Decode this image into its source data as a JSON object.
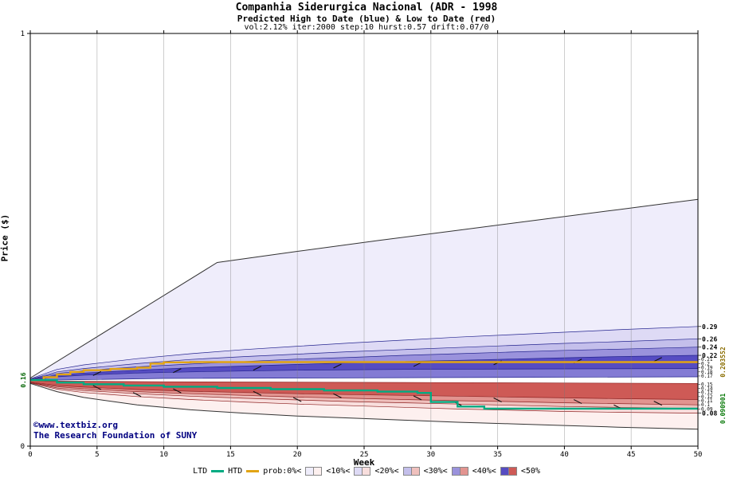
{
  "title": {
    "line1": "Companhia Siderurgica Nacional (ADR - 1998",
    "line2": "Predicted High to Date (blue) &  Low to Date (red)",
    "line3": "vol:2.12% iter:2000 step:10 hurst:0.57 drift:0.07/0"
  },
  "axes": {
    "x_label": "Week",
    "y_label": "Price ($)",
    "x_ticks": [
      0,
      5,
      10,
      15,
      20,
      25,
      30,
      35,
      40,
      45,
      50
    ],
    "y_ticks": [
      {
        "label": "1",
        "value": 1
      },
      {
        "label": "0",
        "value": 0
      }
    ],
    "start_price_label": {
      "label": "0.16",
      "value": 0.16,
      "color": "#006400"
    }
  },
  "watermark": {
    "line1": "©www.textbiz.org",
    "line2": "The Research Foundation of SUNY",
    "color": "#000080"
  },
  "right_labels": {
    "major": [
      {
        "label": "0.29",
        "value": 0.29
      },
      {
        "label": "0.26",
        "value": 0.26
      },
      {
        "label": "0.24",
        "value": 0.24
      },
      {
        "label": "0.22",
        "value": 0.22
      },
      {
        "label": "0.08",
        "value": 0.08
      }
    ],
    "cluster": [
      {
        "label": "0.21",
        "value": 0.21
      },
      {
        "label": "0.2",
        "value": 0.2
      },
      {
        "label": "0.19",
        "value": 0.19
      },
      {
        "label": "0.18",
        "value": 0.18
      },
      {
        "label": "0.17",
        "value": 0.17
      },
      {
        "label": "0.15",
        "value": 0.15
      },
      {
        "label": "0.14",
        "value": 0.14
      },
      {
        "label": "0.13",
        "value": 0.13
      },
      {
        "label": "0.12",
        "value": 0.12
      },
      {
        "label": "0.11",
        "value": 0.11
      },
      {
        "label": "0.1",
        "value": 0.1
      },
      {
        "label": "0.09",
        "value": 0.09
      }
    ],
    "htd_final": {
      "label": "0.203552",
      "value": 0.2036,
      "color": "#8a6d00"
    },
    "ltd_final": {
      "label": "0.090901",
      "value": 0.0909,
      "color": "#0a7a0a"
    }
  },
  "legend": {
    "ltd_label": "LTD",
    "ltd_color": "#00ab82",
    "htd_label": "HTD",
    "htd_color": "#e2a414",
    "prob_label": "prob:0%<",
    "bands": [
      {
        "label": "<10%<",
        "blue": "#efedfb",
        "red": "#fdf0ef"
      },
      {
        "label": "<20%<",
        "blue": "#dedaf5",
        "red": "#f8dedd"
      },
      {
        "label": "<30%<",
        "blue": "#c4bfeb",
        "red": "#efc0bd"
      },
      {
        "label": "<40%<",
        "blue": "#9a92dc",
        "red": "#e29490"
      },
      {
        "label": "<50%",
        "blue": "#564cc2",
        "red": "#ce5a56"
      }
    ]
  },
  "chart_data": {
    "type": "area",
    "title": "Companhia Siderurgica Nacional (ADR - 1998",
    "subtitle": "Predicted High to Date (blue) &  Low to Date (red)",
    "params": "vol:2.12% iter:2000 step:10 hurst:0.57 drift:0.07/0",
    "xlabel": "Week",
    "ylabel": "Price ($)",
    "x_range": [
      0,
      50
    ],
    "y_range": [
      0,
      1
    ],
    "start_price": 0.16,
    "grid": "vertical gridlines at each x tick",
    "blue_bands": {
      "outline_env": "#333333",
      "outline": "#23238e",
      "fills": [
        "#efedfb",
        "#dedaf5",
        "#c4bfeb",
        "#9a92dc",
        "#564cc2",
        "#837bd4"
      ],
      "boundaries": [
        {
          "name": "max-envelope",
          "points": [
            [
              0,
              0.165
            ],
            [
              14,
              0.445
            ],
            [
              20,
              0.472
            ],
            [
              26,
              0.498
            ],
            [
              32,
              0.523
            ],
            [
              38,
              0.548
            ],
            [
              44,
              0.573
            ],
            [
              50,
              0.598
            ]
          ]
        },
        {
          "name": "p10",
          "points": [
            [
              0,
              0.163
            ],
            [
              2,
              0.186
            ],
            [
              4,
              0.197
            ],
            [
              8,
              0.212
            ],
            [
              12,
              0.224
            ],
            [
              16,
              0.234
            ],
            [
              20,
              0.242
            ],
            [
              24,
              0.25
            ],
            [
              28,
              0.257
            ],
            [
              32,
              0.264
            ],
            [
              36,
              0.27
            ],
            [
              40,
              0.276
            ],
            [
              44,
              0.282
            ],
            [
              50,
              0.29
            ]
          ]
        },
        {
          "name": "p20",
          "points": [
            [
              0,
              0.162
            ],
            [
              2,
              0.18
            ],
            [
              4,
              0.188
            ],
            [
              8,
              0.2
            ],
            [
              12,
              0.21
            ],
            [
              16,
              0.217
            ],
            [
              20,
              0.223
            ],
            [
              24,
              0.229
            ],
            [
              28,
              0.234
            ],
            [
              32,
              0.239
            ],
            [
              36,
              0.244
            ],
            [
              40,
              0.249
            ],
            [
              44,
              0.253
            ],
            [
              50,
              0.26
            ]
          ]
        },
        {
          "name": "p30",
          "points": [
            [
              0,
              0.162
            ],
            [
              2,
              0.176
            ],
            [
              4,
              0.183
            ],
            [
              8,
              0.192
            ],
            [
              12,
              0.199
            ],
            [
              16,
              0.205
            ],
            [
              20,
              0.211
            ],
            [
              24,
              0.215
            ],
            [
              28,
              0.22
            ],
            [
              32,
              0.224
            ],
            [
              36,
              0.228
            ],
            [
              40,
              0.232
            ],
            [
              44,
              0.235
            ],
            [
              50,
              0.24
            ]
          ]
        },
        {
          "name": "p40",
          "points": [
            [
              0,
              0.161
            ],
            [
              2,
              0.172
            ],
            [
              4,
              0.177
            ],
            [
              8,
              0.184
            ],
            [
              12,
              0.19
            ],
            [
              16,
              0.194
            ],
            [
              20,
              0.198
            ],
            [
              24,
              0.202
            ],
            [
              28,
              0.205
            ],
            [
              32,
              0.208
            ],
            [
              36,
              0.211
            ],
            [
              40,
              0.214
            ],
            [
              44,
              0.217
            ],
            [
              50,
              0.22
            ]
          ]
        },
        {
          "name": "p50",
          "points": [
            [
              0,
              0.16
            ],
            [
              2,
              0.168
            ],
            [
              4,
              0.172
            ],
            [
              8,
              0.177
            ],
            [
              12,
              0.18
            ],
            [
              16,
              0.182
            ],
            [
              20,
              0.184
            ],
            [
              28,
              0.186
            ],
            [
              38,
              0.187
            ],
            [
              50,
              0.188
            ]
          ]
        },
        {
          "name": "base",
          "points": [
            [
              0,
              0.159
            ],
            [
              10,
              0.164
            ],
            [
              30,
              0.166
            ],
            [
              50,
              0.168
            ]
          ]
        }
      ]
    },
    "red_bands": {
      "outline_env": "#333333",
      "outline": "#8e2323",
      "fills": [
        "#ce5a56",
        "#e29490",
        "#efc0bd",
        "#f8dedd",
        "#fdf0ef"
      ],
      "boundaries": [
        {
          "name": "base",
          "points": [
            [
              0,
              0.158
            ],
            [
              10,
              0.156
            ],
            [
              30,
              0.154
            ],
            [
              50,
              0.152
            ]
          ]
        },
        {
          "name": "p50",
          "points": [
            [
              0,
              0.155
            ],
            [
              2,
              0.147
            ],
            [
              4,
              0.143
            ],
            [
              8,
              0.137
            ],
            [
              12,
              0.133
            ],
            [
              16,
              0.13
            ],
            [
              20,
              0.127
            ],
            [
              24,
              0.125
            ],
            [
              28,
              0.123
            ],
            [
              32,
              0.121
            ],
            [
              36,
              0.119
            ],
            [
              40,
              0.117
            ],
            [
              44,
              0.115
            ],
            [
              50,
              0.113
            ]
          ]
        },
        {
          "name": "p40",
          "points": [
            [
              0,
              0.154
            ],
            [
              2,
              0.144
            ],
            [
              4,
              0.139
            ],
            [
              8,
              0.132
            ],
            [
              12,
              0.127
            ],
            [
              16,
              0.123
            ],
            [
              20,
              0.119
            ],
            [
              24,
              0.116
            ],
            [
              28,
              0.113
            ],
            [
              32,
              0.11
            ],
            [
              36,
              0.108
            ],
            [
              40,
              0.105
            ],
            [
              44,
              0.103
            ],
            [
              50,
              0.1
            ]
          ]
        },
        {
          "name": "p30",
          "points": [
            [
              0,
              0.154
            ],
            [
              2,
              0.141
            ],
            [
              4,
              0.135
            ],
            [
              8,
              0.127
            ],
            [
              12,
              0.121
            ],
            [
              16,
              0.116
            ],
            [
              20,
              0.112
            ],
            [
              24,
              0.108
            ],
            [
              28,
              0.105
            ],
            [
              32,
              0.102
            ],
            [
              36,
              0.099
            ],
            [
              40,
              0.096
            ],
            [
              44,
              0.094
            ],
            [
              50,
              0.091
            ]
          ]
        },
        {
          "name": "p20",
          "points": [
            [
              0,
              0.153
            ],
            [
              2,
              0.138
            ],
            [
              4,
              0.13
            ],
            [
              8,
              0.12
            ],
            [
              12,
              0.113
            ],
            [
              16,
              0.107
            ],
            [
              20,
              0.102
            ],
            [
              24,
              0.098
            ],
            [
              28,
              0.094
            ],
            [
              32,
              0.09
            ],
            [
              36,
              0.087
            ],
            [
              40,
              0.084
            ],
            [
              44,
              0.082
            ],
            [
              50,
              0.08
            ]
          ]
        },
        {
          "name": "min-envelope",
          "points": [
            [
              0,
              0.152
            ],
            [
              2,
              0.132
            ],
            [
              4,
              0.118
            ],
            [
              8,
              0.1
            ],
            [
              12,
              0.088
            ],
            [
              16,
              0.08
            ],
            [
              20,
              0.073
            ],
            [
              24,
              0.068
            ],
            [
              28,
              0.063
            ],
            [
              32,
              0.058
            ],
            [
              36,
              0.054
            ],
            [
              40,
              0.05
            ],
            [
              44,
              0.046
            ],
            [
              50,
              0.041
            ]
          ]
        }
      ]
    },
    "series": [
      {
        "name": "HTD",
        "color": "#e2a414",
        "width": 2.4,
        "step": true,
        "final_value": 0.203552,
        "points": [
          [
            0,
            0.16
          ],
          [
            1,
            0.167
          ],
          [
            2,
            0.174
          ],
          [
            3,
            0.18
          ],
          [
            4,
            0.184
          ],
          [
            6,
            0.187
          ],
          [
            8,
            0.19
          ],
          [
            9,
            0.2
          ],
          [
            10,
            0.203
          ],
          [
            12,
            0.2036
          ],
          [
            50,
            0.2036
          ]
        ]
      },
      {
        "name": "LTD",
        "color": "#00ab82",
        "width": 2.4,
        "step": true,
        "final_value": 0.090901,
        "points": [
          [
            0,
            0.16
          ],
          [
            2,
            0.154
          ],
          [
            4,
            0.15
          ],
          [
            7,
            0.147
          ],
          [
            10,
            0.144
          ],
          [
            14,
            0.141
          ],
          [
            18,
            0.138
          ],
          [
            22,
            0.135
          ],
          [
            26,
            0.132
          ],
          [
            29,
            0.129
          ],
          [
            30,
            0.107
          ],
          [
            32,
            0.096
          ],
          [
            34,
            0.0909
          ],
          [
            50,
            0.0909
          ]
        ]
      }
    ],
    "dash_marks": {
      "up": [
        [
          5,
          0.176
        ],
        [
          11,
          0.183
        ],
        [
          17,
          0.189
        ],
        [
          23,
          0.194
        ],
        [
          29,
          0.198
        ],
        [
          35,
          0.202
        ],
        [
          41,
          0.206
        ],
        [
          47,
          0.21
        ]
      ],
      "down": [
        [
          5,
          0.142
        ],
        [
          11,
          0.134
        ],
        [
          17,
          0.128
        ],
        [
          23,
          0.122
        ],
        [
          29,
          0.117
        ],
        [
          35,
          0.112
        ],
        [
          41,
          0.108
        ],
        [
          47,
          0.104
        ],
        [
          8,
          0.125
        ],
        [
          20,
          0.113
        ],
        [
          32,
          0.103
        ],
        [
          44,
          0.095
        ]
      ]
    }
  }
}
